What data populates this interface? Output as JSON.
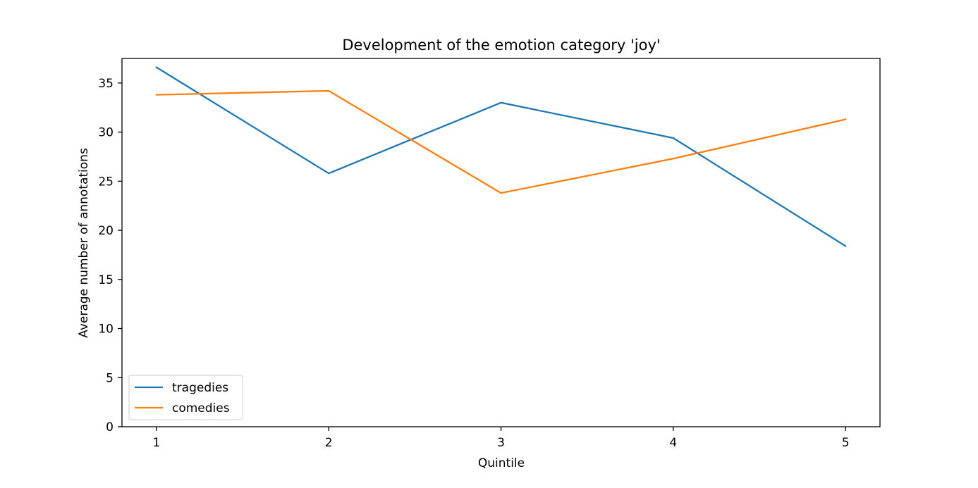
{
  "chart_data": {
    "type": "line",
    "title": "Development of the emotion category 'joy'",
    "xlabel": "Quintile",
    "ylabel": "Average number of annotations",
    "x": [
      1,
      2,
      3,
      4,
      5
    ],
    "xticks": [
      "1",
      "2",
      "3",
      "4",
      "5"
    ],
    "yticks": [
      "0",
      "5",
      "10",
      "15",
      "20",
      "25",
      "30",
      "35"
    ],
    "xlim": [
      0.8,
      5.2
    ],
    "ylim": [
      0,
      37.5
    ],
    "grid": false,
    "legend_position": "lower-left",
    "series": [
      {
        "name": "tragedies",
        "color": "#1f77b4",
        "values": [
          36.6,
          25.8,
          33.0,
          29.4,
          18.4
        ]
      },
      {
        "name": "comedies",
        "color": "#ff7f0e",
        "values": [
          33.8,
          34.2,
          23.8,
          27.3,
          31.3
        ]
      }
    ]
  }
}
